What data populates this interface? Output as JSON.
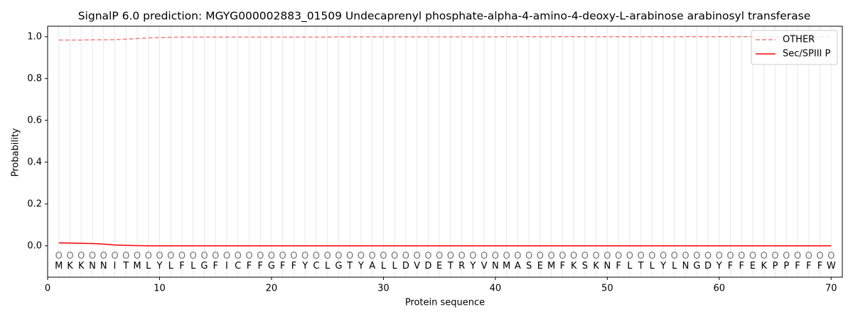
{
  "chart_data": {
    "type": "line",
    "title": "SignalP 6.0 prediction: MGYG000002883_01509 Undecaprenyl phosphate-alpha-4-amino-4-deoxy-L-arabinose arabinosyl transferase",
    "xlabel": "Protein sequence",
    "ylabel": "Probability",
    "x": [
      1,
      2,
      3,
      4,
      5,
      6,
      7,
      8,
      9,
      10,
      11,
      12,
      13,
      14,
      15,
      16,
      17,
      18,
      19,
      20,
      21,
      22,
      23,
      24,
      25,
      26,
      27,
      28,
      29,
      30,
      31,
      32,
      33,
      34,
      35,
      36,
      37,
      38,
      39,
      40,
      41,
      42,
      43,
      44,
      45,
      46,
      47,
      48,
      49,
      50,
      51,
      52,
      53,
      54,
      55,
      56,
      57,
      58,
      59,
      60,
      61,
      62,
      63,
      64,
      65,
      66,
      67,
      68,
      69,
      70
    ],
    "residues": [
      "M",
      "K",
      "K",
      "N",
      "N",
      "I",
      "T",
      "M",
      "L",
      "Y",
      "L",
      "F",
      "L",
      "G",
      "F",
      "I",
      "C",
      "F",
      "F",
      "G",
      "F",
      "F",
      "Y",
      "C",
      "L",
      "G",
      "T",
      "Y",
      "A",
      "L",
      "L",
      "D",
      "V",
      "D",
      "E",
      "T",
      "R",
      "Y",
      "V",
      "N",
      "M",
      "A",
      "S",
      "E",
      "M",
      "F",
      "K",
      "S",
      "K",
      "N",
      "F",
      "L",
      "T",
      "L",
      "Y",
      "L",
      "N",
      "G",
      "D",
      "Y",
      "F",
      "F",
      "E",
      "K",
      "P",
      "P",
      "F",
      "F",
      "F",
      "W"
    ],
    "labels": [
      "O",
      "O",
      "O",
      "O",
      "O",
      "O",
      "O",
      "O",
      "O",
      "O",
      "O",
      "O",
      "O",
      "O",
      "O",
      "O",
      "O",
      "O",
      "O",
      "O",
      "O",
      "O",
      "O",
      "O",
      "O",
      "O",
      "O",
      "O",
      "O",
      "O",
      "O",
      "O",
      "O",
      "O",
      "O",
      "O",
      "O",
      "O",
      "O",
      "O",
      "O",
      "O",
      "O",
      "O",
      "O",
      "O",
      "O",
      "O",
      "O",
      "O",
      "O",
      "O",
      "O",
      "O",
      "O",
      "O",
      "O",
      "O",
      "O",
      "O",
      "O",
      "O",
      "O",
      "O",
      "O",
      "O",
      "O",
      "O",
      "O",
      "O"
    ],
    "series": [
      {
        "name": "OTHER",
        "color": "#f08080",
        "dash": true,
        "values": [
          0.984,
          0.984,
          0.984,
          0.985,
          0.985,
          0.986,
          0.988,
          0.991,
          0.994,
          0.996,
          0.997,
          0.998,
          0.998,
          0.998,
          0.998,
          0.998,
          0.998,
          0.998,
          0.998,
          0.998,
          0.998,
          0.998,
          0.998,
          0.998,
          0.998,
          0.999,
          0.999,
          0.999,
          0.999,
          0.999,
          0.999,
          0.999,
          0.999,
          0.999,
          0.999,
          0.999,
          0.999,
          0.999,
          0.999,
          0.999,
          1,
          1,
          1,
          1,
          1,
          1,
          1,
          1,
          1,
          1,
          1,
          1,
          1,
          1,
          1,
          1,
          1,
          1,
          1,
          1,
          1,
          1,
          1,
          1,
          1,
          1,
          1,
          1,
          1,
          1
        ]
      },
      {
        "name": "Sec/SPIII P",
        "color": "#ff0000",
        "dash": false,
        "values": [
          0.014,
          0.013,
          0.012,
          0.011,
          0.008,
          0.004,
          0.002,
          0.001,
          0,
          0,
          0,
          0,
          0,
          0,
          0,
          0,
          0,
          0,
          0,
          0,
          0,
          0,
          0,
          0,
          0,
          0,
          0,
          0,
          0,
          0,
          0,
          0,
          0,
          0,
          0,
          0,
          0,
          0,
          0,
          0,
          0,
          0,
          0,
          0,
          0,
          0,
          0,
          0,
          0,
          0,
          0,
          0,
          0,
          0,
          0,
          0,
          0,
          0,
          0,
          0,
          0,
          0,
          0,
          0,
          0,
          0,
          0,
          0,
          0,
          0
        ]
      }
    ],
    "xlim": [
      0,
      71
    ],
    "ylim": [
      -0.15,
      1.05
    ],
    "xticks": [
      0,
      10,
      20,
      30,
      40,
      50,
      60,
      70
    ],
    "yticks": [
      {
        "value": 0,
        "label": "0.0"
      },
      {
        "value": 0.2,
        "label": "0.2"
      },
      {
        "value": 0.4,
        "label": "0.4"
      },
      {
        "value": 0.6,
        "label": "0.6"
      },
      {
        "value": 0.8,
        "label": "0.8"
      },
      {
        "value": 1,
        "label": "1.0"
      }
    ],
    "legend": "upper right"
  }
}
